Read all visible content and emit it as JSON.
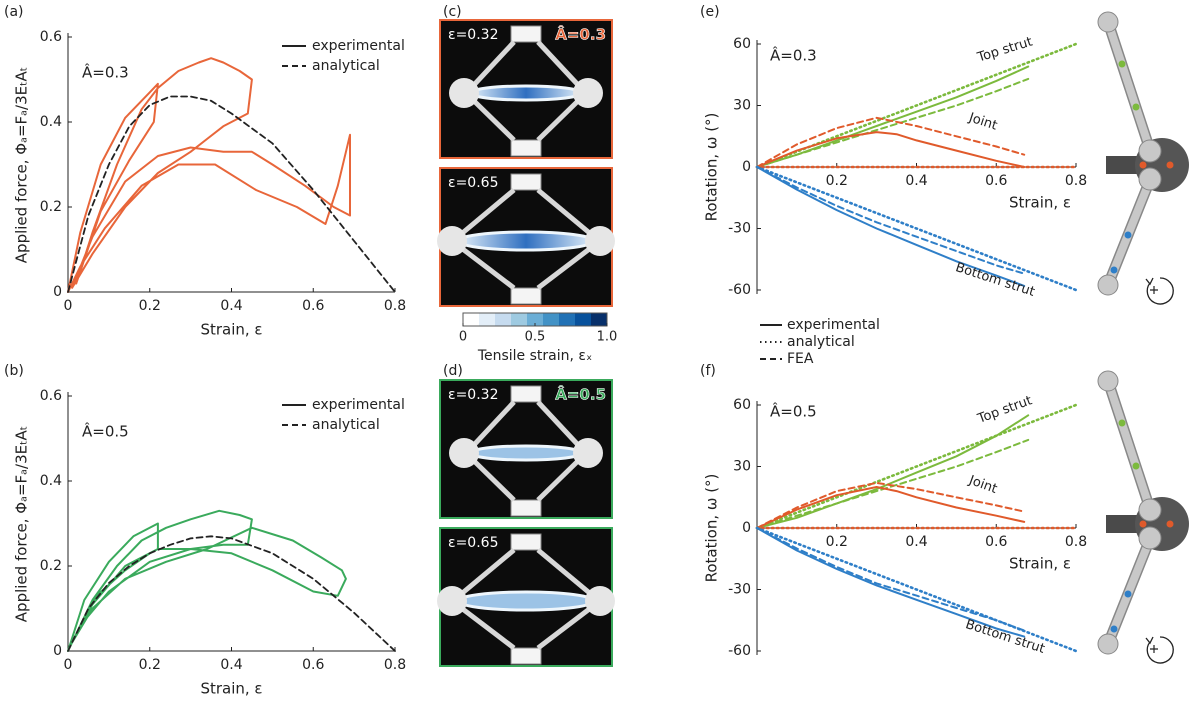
{
  "chart_data": [
    {
      "type": "line",
      "panel": "(a)",
      "annotation": "Â=0.3",
      "annotation_color": "#e8663a",
      "xlabel": "Strain, ε",
      "ylabel": "Applied force, Φₐ=Fₐ/3EₜAₜ",
      "xlim": [
        0,
        0.8
      ],
      "ylim": [
        0,
        0.6
      ],
      "xticks": [
        0,
        0.2,
        0.4,
        0.6,
        0.8
      ],
      "yticks": [
        0,
        0.2,
        0.4,
        0.6
      ],
      "legend": "upper right",
      "series": [
        {
          "name": "experimental",
          "color": "#e8663a",
          "dash": "solid",
          "x": [
            0,
            0.03,
            0.08,
            0.14,
            0.2,
            0.22,
            0.21,
            0.15,
            0.08,
            0.02,
            0.06,
            0.12,
            0.18,
            0.22,
            0.27,
            0.32,
            0.35,
            0.38,
            0.42,
            0.45,
            0.44,
            0.38,
            0.34,
            0.3,
            0.22,
            0.14,
            0.06,
            0.01,
            0.06,
            0.14,
            0.22,
            0.3,
            0.38,
            0.45,
            0.5,
            0.58,
            0.65,
            0.69,
            0.69,
            0.66,
            0.63,
            0.56,
            0.46,
            0.36,
            0.27,
            0.18,
            0.09,
            0.03,
            0
          ],
          "values": [
            0,
            0.14,
            0.3,
            0.41,
            0.47,
            0.49,
            0.4,
            0.31,
            0.19,
            0.02,
            0.14,
            0.3,
            0.43,
            0.48,
            0.52,
            0.54,
            0.55,
            0.54,
            0.52,
            0.5,
            0.42,
            0.39,
            0.36,
            0.33,
            0.28,
            0.2,
            0.09,
            0.01,
            0.13,
            0.26,
            0.32,
            0.34,
            0.33,
            0.33,
            0.3,
            0.25,
            0.2,
            0.18,
            0.37,
            0.25,
            0.16,
            0.2,
            0.24,
            0.3,
            0.3,
            0.25,
            0.15,
            0.06,
            0
          ]
        },
        {
          "name": "analytical",
          "color": "#222222",
          "dash": "dashed",
          "x": [
            0,
            0.05,
            0.1,
            0.15,
            0.2,
            0.25,
            0.3,
            0.35,
            0.4,
            0.5,
            0.6,
            0.7,
            0.8
          ],
          "values": [
            0,
            0.18,
            0.3,
            0.39,
            0.44,
            0.46,
            0.46,
            0.45,
            0.42,
            0.35,
            0.24,
            0.12,
            0
          ]
        }
      ]
    },
    {
      "type": "line",
      "panel": "(b)",
      "annotation": "Â=0.5",
      "annotation_color": "#3aaa5c",
      "xlabel": "Strain, ε",
      "ylabel": "Applied force, Φₐ=Fₐ/3EₜAₜ",
      "xlim": [
        0,
        0.8
      ],
      "ylim": [
        0,
        0.6
      ],
      "xticks": [
        0,
        0.2,
        0.4,
        0.6,
        0.8
      ],
      "yticks": [
        0,
        0.2,
        0.4,
        0.6
      ],
      "legend": "upper right",
      "series": [
        {
          "name": "experimental",
          "color": "#3aaa5c",
          "dash": "solid",
          "x": [
            0,
            0.04,
            0.1,
            0.16,
            0.22,
            0.22,
            0.2,
            0.14,
            0.07,
            0.01,
            0.06,
            0.12,
            0.18,
            0.24,
            0.3,
            0.37,
            0.42,
            0.45,
            0.44,
            0.38,
            0.3,
            0.22,
            0.14,
            0.06,
            0.01,
            0.06,
            0.14,
            0.24,
            0.34,
            0.45,
            0.55,
            0.62,
            0.67,
            0.68,
            0.66,
            0.6,
            0.5,
            0.4,
            0.3,
            0.2,
            0.1,
            0.03,
            0
          ],
          "values": [
            0,
            0.12,
            0.21,
            0.27,
            0.3,
            0.24,
            0.23,
            0.19,
            0.13,
            0.02,
            0.12,
            0.2,
            0.26,
            0.29,
            0.31,
            0.33,
            0.32,
            0.31,
            0.25,
            0.25,
            0.24,
            0.24,
            0.2,
            0.11,
            0.02,
            0.1,
            0.17,
            0.21,
            0.24,
            0.29,
            0.26,
            0.22,
            0.19,
            0.17,
            0.13,
            0.14,
            0.19,
            0.23,
            0.24,
            0.21,
            0.14,
            0.06,
            0
          ]
        },
        {
          "name": "analytical",
          "color": "#222222",
          "dash": "dashed",
          "x": [
            0,
            0.05,
            0.1,
            0.15,
            0.2,
            0.25,
            0.3,
            0.35,
            0.4,
            0.5,
            0.6,
            0.7,
            0.8
          ],
          "values": [
            0,
            0.1,
            0.16,
            0.2,
            0.23,
            0.25,
            0.265,
            0.27,
            0.265,
            0.23,
            0.17,
            0.09,
            0
          ]
        }
      ]
    },
    {
      "type": "line",
      "panel": "(e)",
      "annotation": "Â=0.3",
      "xlabel": "Strain, ε",
      "ylabel": "Rotation, ω (°)",
      "xlim": [
        0,
        0.8
      ],
      "ylim": [
        -60,
        60
      ],
      "xticks": [
        0.2,
        0.4,
        0.6,
        0.8
      ],
      "yticks": [
        -60,
        -30,
        0,
        30,
        60
      ],
      "legend": [
        {
          "name": "experimental",
          "dash": "solid"
        },
        {
          "name": "analytical",
          "dash": "dotted"
        },
        {
          "name": "FEA",
          "dash": "dashed"
        }
      ],
      "groups": [
        {
          "name": "Top strut",
          "color": "#7cba3d",
          "lines": [
            {
              "dash": "solid",
              "x": [
                0,
                0.1,
                0.2,
                0.3,
                0.4,
                0.5,
                0.6,
                0.68
              ],
              "values": [
                0,
                6,
                13,
                20,
                27,
                34,
                42,
                49
              ]
            },
            {
              "dash": "dotted",
              "x": [
                0,
                0.8
              ],
              "values": [
                0,
                60
              ]
            },
            {
              "dash": "dashed",
              "x": [
                0,
                0.1,
                0.2,
                0.3,
                0.4,
                0.5,
                0.6,
                0.68
              ],
              "values": [
                0,
                6,
                12,
                18,
                24,
                30,
                37,
                43
              ]
            }
          ]
        },
        {
          "name": "Joint",
          "color": "#e05a2b",
          "lines": [
            {
              "dash": "solid",
              "x": [
                0,
                0.1,
                0.2,
                0.3,
                0.35,
                0.4,
                0.5,
                0.6,
                0.67
              ],
              "values": [
                0,
                8,
                14,
                17,
                16,
                13,
                8,
                3,
                0
              ]
            },
            {
              "dash": "dotted",
              "x": [
                0,
                0.8
              ],
              "values": [
                0,
                0
              ]
            },
            {
              "dash": "dashed",
              "x": [
                0,
                0.1,
                0.2,
                0.3,
                0.4,
                0.5,
                0.6,
                0.67
              ],
              "values": [
                0,
                11,
                19,
                24,
                20,
                15,
                10,
                6
              ]
            }
          ]
        },
        {
          "name": "Bottom strut",
          "color": "#2f7fc8",
          "lines": [
            {
              "dash": "solid",
              "x": [
                0,
                0.1,
                0.2,
                0.3,
                0.4,
                0.5,
                0.6,
                0.67
              ],
              "values": [
                0,
                -11,
                -21,
                -30,
                -38,
                -46,
                -53,
                -58
              ]
            },
            {
              "dash": "dotted",
              "x": [
                0,
                0.8
              ],
              "values": [
                0,
                -60
              ]
            },
            {
              "dash": "dashed",
              "x": [
                0,
                0.1,
                0.2,
                0.3,
                0.4,
                0.5,
                0.6,
                0.67
              ],
              "values": [
                0,
                -10,
                -19,
                -27,
                -34,
                -41,
                -48,
                -52
              ]
            }
          ]
        }
      ]
    },
    {
      "type": "line",
      "panel": "(f)",
      "annotation": "Â=0.5",
      "xlabel": "Strain, ε",
      "ylabel": "Rotation, ω (°)",
      "xlim": [
        0,
        0.8
      ],
      "ylim": [
        -60,
        60
      ],
      "xticks": [
        0.2,
        0.4,
        0.6,
        0.8
      ],
      "yticks": [
        -60,
        -30,
        0,
        30,
        60
      ],
      "groups": [
        {
          "name": "Top strut",
          "color": "#7cba3d",
          "lines": [
            {
              "dash": "solid",
              "x": [
                0,
                0.1,
                0.2,
                0.3,
                0.4,
                0.5,
                0.6,
                0.68
              ],
              "values": [
                0,
                5,
                12,
                19,
                27,
                35,
                45,
                55
              ]
            },
            {
              "dash": "dotted",
              "x": [
                0,
                0.8
              ],
              "values": [
                0,
                60
              ]
            },
            {
              "dash": "dashed",
              "x": [
                0,
                0.1,
                0.2,
                0.3,
                0.4,
                0.5,
                0.6,
                0.68
              ],
              "values": [
                0,
                6,
                12,
                18,
                24,
                30,
                37,
                43
              ]
            }
          ]
        },
        {
          "name": "Joint",
          "color": "#e05a2b",
          "lines": [
            {
              "dash": "solid",
              "x": [
                0,
                0.1,
                0.2,
                0.3,
                0.35,
                0.4,
                0.5,
                0.6,
                0.67
              ],
              "values": [
                0,
                9,
                16,
                20,
                18,
                15,
                10,
                6,
                3
              ]
            },
            {
              "dash": "dotted",
              "x": [
                0,
                0.8
              ],
              "values": [
                0,
                0
              ]
            },
            {
              "dash": "dashed",
              "x": [
                0,
                0.1,
                0.2,
                0.3,
                0.4,
                0.5,
                0.6,
                0.67
              ],
              "values": [
                0,
                10,
                18,
                22,
                19,
                15,
                11,
                8
              ]
            }
          ]
        },
        {
          "name": "Bottom strut",
          "color": "#2f7fc8",
          "lines": [
            {
              "dash": "solid",
              "x": [
                0,
                0.1,
                0.2,
                0.3,
                0.4,
                0.5,
                0.6,
                0.67
              ],
              "values": [
                0,
                -11,
                -20,
                -28,
                -35,
                -42,
                -49,
                -53
              ]
            },
            {
              "dash": "dotted",
              "x": [
                0,
                0.8
              ],
              "values": [
                0,
                -60
              ]
            },
            {
              "dash": "dashed",
              "x": [
                0,
                0.1,
                0.2,
                0.3,
                0.4,
                0.5,
                0.6,
                0.67
              ],
              "values": [
                0,
                -10,
                -19,
                -27,
                -33,
                -39,
                -45,
                -50
              ]
            }
          ]
        }
      ]
    }
  ],
  "images": [
    {
      "panel": "(c)",
      "badge": "Â=0.3",
      "color": "#e8663a",
      "frames": [
        {
          "caption": "ε=0.32"
        },
        {
          "caption": "ε=0.65"
        }
      ],
      "colorbar": {
        "label": "Tensile strain, εₓ",
        "lim": [
          0,
          1
        ],
        "ticks": [
          0,
          0.5,
          {
            "value": 1,
            "label": "1.0"
          }
        ]
      }
    },
    {
      "panel": "(d)",
      "badge": "Â=0.5",
      "color": "#3aaa5c",
      "frames": [
        {
          "caption": "ε=0.32"
        },
        {
          "caption": "ε=0.65"
        }
      ]
    }
  ]
}
